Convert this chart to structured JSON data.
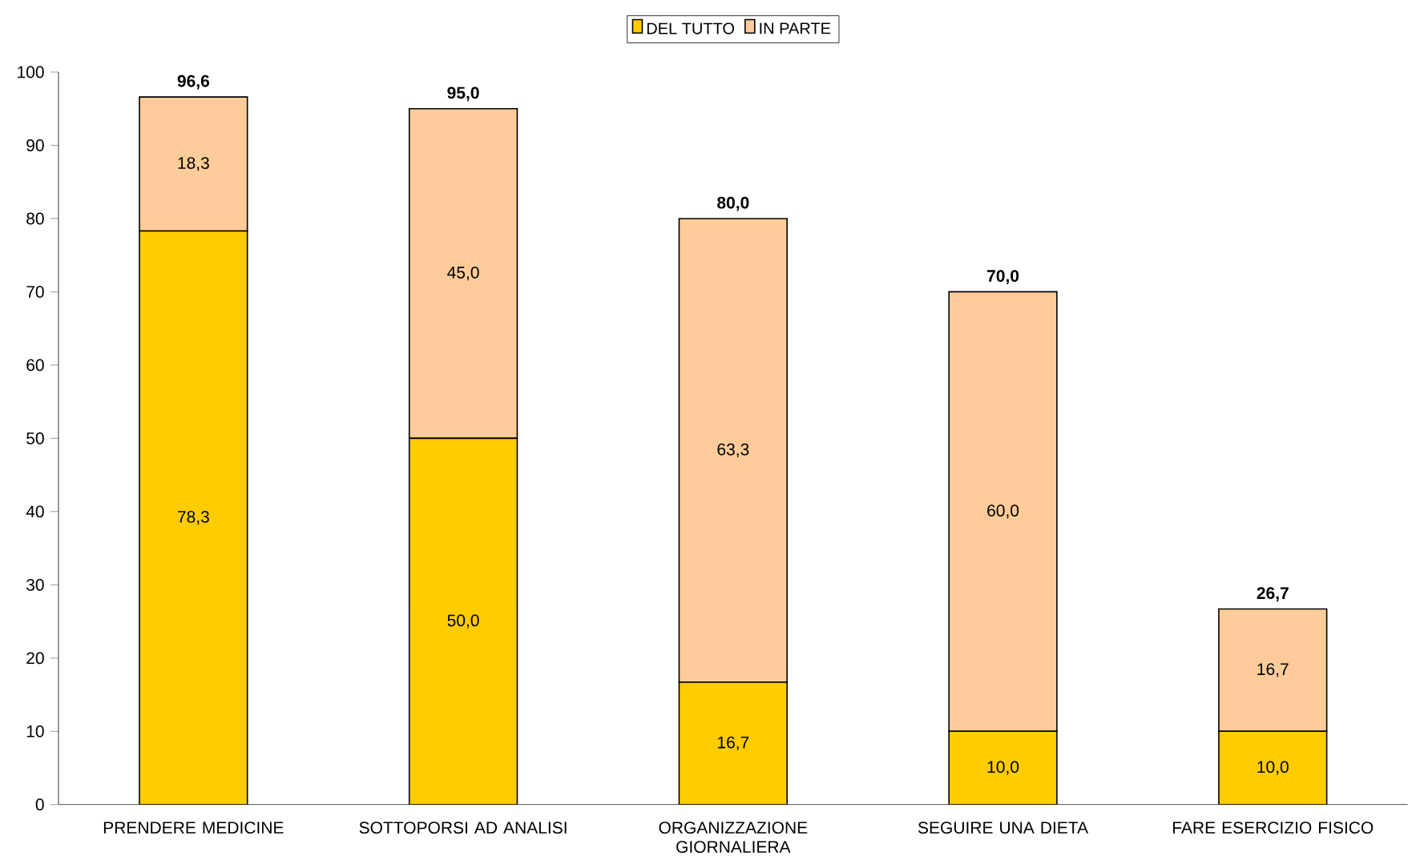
{
  "chart_data": {
    "type": "bar",
    "stacked": true,
    "categories": [
      "PRENDERE MEDICINE",
      "SOTTOPORSI AD ANALISI",
      "ORGANIZZAZIONE GIORNALIERA",
      "SEGUIRE UNA DIETA",
      "FARE ESERCIZIO FISICO"
    ],
    "series": [
      {
        "name": "DEL TUTTO",
        "color": "#ffcc00",
        "values": [
          78.3,
          50.0,
          16.7,
          10.0,
          10.0
        ],
        "value_labels": [
          "78,3",
          "50,0",
          "16,7",
          "10,0",
          "10,0"
        ]
      },
      {
        "name": "IN PARTE",
        "color": "#ffcc99",
        "values": [
          18.3,
          45.0,
          63.3,
          60.0,
          16.7
        ],
        "value_labels": [
          "18,3",
          "45,0",
          "63,3",
          "60,0",
          "16,7"
        ]
      }
    ],
    "totals": [
      "96,6",
      "95,0",
      "80,0",
      "70,0",
      "26,7"
    ],
    "ylim": [
      0,
      100
    ],
    "yticks": [
      0,
      10,
      20,
      30,
      40,
      50,
      60,
      70,
      80,
      90,
      100
    ],
    "grid": false,
    "legend": "top"
  }
}
